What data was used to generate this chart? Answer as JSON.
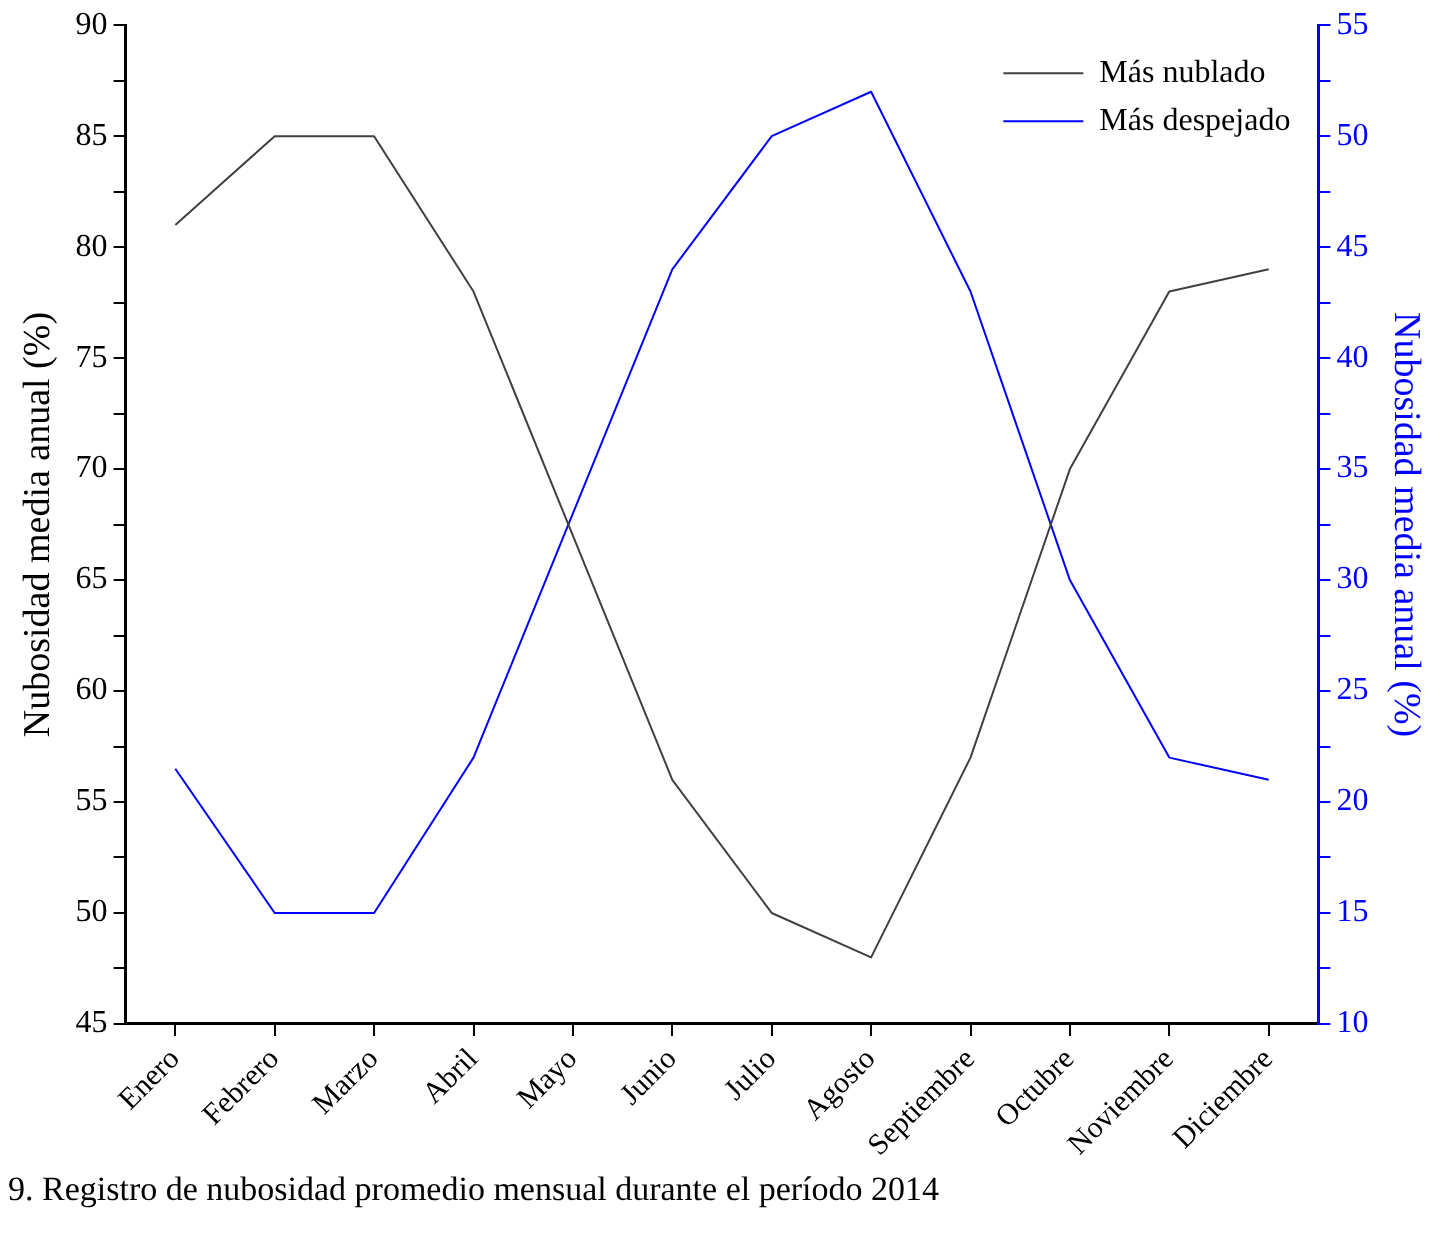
{
  "chart_data": {
    "type": "line",
    "ylabel": "Nubosidad media anual (%)",
    "y2label": "Nubosidad media anual (%)",
    "categories": [
      "Enero",
      "Febrero",
      "Marzo",
      "Abril",
      "Mayo",
      "Junio",
      "Julio",
      "Agosto",
      "Septiembre",
      "Octubre",
      "Noviembre",
      "Diciembre"
    ],
    "series": [
      {
        "name": "Más nublado",
        "color": "#404040",
        "values": [
          81,
          85,
          85,
          78,
          67,
          56,
          50,
          48,
          57,
          70,
          78,
          79
        ]
      },
      {
        "name": "Más despejado",
        "color": "#0000ff",
        "axis": "y2",
        "values": [
          21.5,
          15,
          15,
          22,
          33,
          44,
          50,
          52,
          43,
          30,
          22,
          21
        ]
      }
    ],
    "ylim": [
      45,
      90
    ],
    "yticks": [
      45,
      {
        "value": 47.5,
        "label": null
      },
      50,
      {
        "value": 52.5,
        "label": null
      },
      55,
      {
        "value": 57.5,
        "label": null
      },
      60,
      {
        "value": 62.5,
        "label": null
      },
      65,
      {
        "value": 67.5,
        "label": null
      },
      70,
      {
        "value": 72.5,
        "label": null
      },
      75,
      {
        "value": 77.5,
        "label": null
      },
      80,
      {
        "value": 82.5,
        "label": null
      },
      85,
      {
        "value": 87.5,
        "label": null
      },
      90
    ],
    "y2lim": [
      10,
      55
    ],
    "y2ticks": [
      10,
      {
        "value": 12.5,
        "label": null
      },
      15,
      {
        "value": 17.5,
        "label": null
      },
      20,
      {
        "value": 22.5,
        "label": null
      },
      25,
      {
        "value": 27.5,
        "label": null
      },
      30,
      {
        "value": 32.5,
        "label": null
      },
      35,
      {
        "value": 37.5,
        "label": null
      },
      40,
      {
        "value": 42.5,
        "label": null
      },
      45,
      {
        "value": 47.5,
        "label": null
      },
      50,
      {
        "value": 52.5,
        "label": null
      },
      55
    ],
    "grid": false,
    "legend": "top right",
    "marker": "none",
    "line_style": "solid",
    "annotations": [
      "9. Registro de nubosidad promedio mensual durante el período 2014"
    ]
  }
}
